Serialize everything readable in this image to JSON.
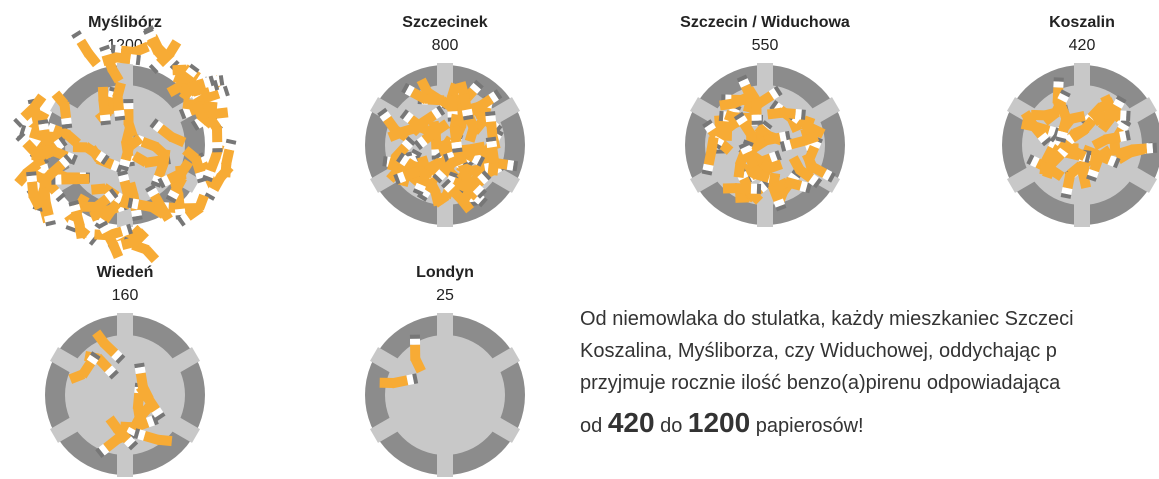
{
  "cities": [
    {
      "name": "Myślibórz",
      "value": 1200
    },
    {
      "name": "Szczecinek",
      "value": 800
    },
    {
      "name": "Szczecin / Widuchowa",
      "value": 550
    },
    {
      "name": "Koszalin",
      "value": 420
    },
    {
      "name": "Wiedeń",
      "value": 160
    },
    {
      "name": "Londyn",
      "value": 25
    }
  ],
  "text": {
    "lines": [
      "Od niemowlaka do stulatka, każdy mieszkaniec Szczeci",
      "Koszalina, Myśliborza, czy Widuchowej, oddychając p",
      "przyjmuje rocznie ilość benzo(a)pirenu odpowiadająca"
    ],
    "range": {
      "from_word": "od",
      "from": 420,
      "to_word": "do",
      "to": 1200,
      "unit": "papierosów!"
    }
  }
}
